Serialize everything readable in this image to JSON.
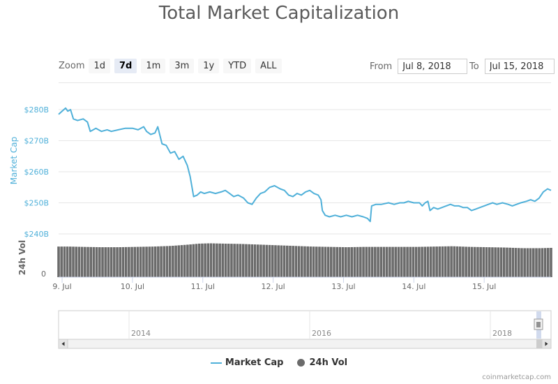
{
  "title": "Total Market Capitalization",
  "zoom": {
    "label": "Zoom",
    "buttons": [
      "1d",
      "7d",
      "1m",
      "3m",
      "1y",
      "YTD",
      "ALL"
    ],
    "active": "7d"
  },
  "range": {
    "from_label": "From",
    "from_value": "Jul 8, 2018",
    "to_label": "To",
    "to_value": "Jul 15, 2018"
  },
  "colors": {
    "market_cap": "#4fb0d9",
    "volume": "#6b6b6b"
  },
  "chart_data": {
    "type": "line",
    "x_tick_labels": [
      "9. Jul",
      "10. Jul",
      "11. Jul",
      "12. Jul",
      "13. Jul",
      "14. Jul",
      "15. Jul"
    ],
    "y_axis_label": "Market Cap",
    "y_tick_labels": [
      "$240B",
      "$250B",
      "$260B",
      "$270B",
      "$280B"
    ],
    "ylim": [
      240,
      280
    ],
    "volume_axis_label": "24h Vol",
    "volume_tick_labels": [
      "0"
    ],
    "series": [
      {
        "name": "Market Cap",
        "unit": "$B",
        "points": [
          [
            8.95,
            278.5
          ],
          [
            9.0,
            279.5
          ],
          [
            9.05,
            280.5
          ],
          [
            9.08,
            279.5
          ],
          [
            9.12,
            280.0
          ],
          [
            9.16,
            277.0
          ],
          [
            9.22,
            276.5
          ],
          [
            9.3,
            277.0
          ],
          [
            9.36,
            276.0
          ],
          [
            9.4,
            273.0
          ],
          [
            9.48,
            274.0
          ],
          [
            9.56,
            273.0
          ],
          [
            9.64,
            273.5
          ],
          [
            9.7,
            273.0
          ],
          [
            9.8,
            273.5
          ],
          [
            9.9,
            274.0
          ],
          [
            10.0,
            274.0
          ],
          [
            10.08,
            273.5
          ],
          [
            10.16,
            274.5
          ],
          [
            10.2,
            273.0
          ],
          [
            10.26,
            272.0
          ],
          [
            10.32,
            272.5
          ],
          [
            10.36,
            274.5
          ],
          [
            10.42,
            269.0
          ],
          [
            10.48,
            268.5
          ],
          [
            10.54,
            266.0
          ],
          [
            10.6,
            266.5
          ],
          [
            10.66,
            264.0
          ],
          [
            10.72,
            265.0
          ],
          [
            10.78,
            262.0
          ],
          [
            10.82,
            258.5
          ],
          [
            10.87,
            252.0
          ],
          [
            10.92,
            252.5
          ],
          [
            10.97,
            253.5
          ],
          [
            11.02,
            253.0
          ],
          [
            11.1,
            253.5
          ],
          [
            11.18,
            253.0
          ],
          [
            11.26,
            253.5
          ],
          [
            11.32,
            254.0
          ],
          [
            11.38,
            253.0
          ],
          [
            11.44,
            252.0
          ],
          [
            11.5,
            252.5
          ],
          [
            11.58,
            251.5
          ],
          [
            11.64,
            250.0
          ],
          [
            11.7,
            249.5
          ],
          [
            11.76,
            251.5
          ],
          [
            11.82,
            253.0
          ],
          [
            11.88,
            253.5
          ],
          [
            11.95,
            255.0
          ],
          [
            12.02,
            255.5
          ],
          [
            12.1,
            254.5
          ],
          [
            12.16,
            254.0
          ],
          [
            12.22,
            252.5
          ],
          [
            12.28,
            252.0
          ],
          [
            12.34,
            253.0
          ],
          [
            12.4,
            252.5
          ],
          [
            12.46,
            253.5
          ],
          [
            12.52,
            254.0
          ],
          [
            12.58,
            253.0
          ],
          [
            12.64,
            252.5
          ],
          [
            12.68,
            251.0
          ],
          [
            12.7,
            247.5
          ],
          [
            12.74,
            246.0
          ],
          [
            12.8,
            245.5
          ],
          [
            12.88,
            246.0
          ],
          [
            12.96,
            245.5
          ],
          [
            13.04,
            246.0
          ],
          [
            13.12,
            245.5
          ],
          [
            13.2,
            246.0
          ],
          [
            13.28,
            245.5
          ],
          [
            13.34,
            245.0
          ],
          [
            13.38,
            244.0
          ],
          [
            13.4,
            249.0
          ],
          [
            13.46,
            249.5
          ],
          [
            13.54,
            249.5
          ],
          [
            13.64,
            250.0
          ],
          [
            13.72,
            249.5
          ],
          [
            13.8,
            250.0
          ],
          [
            13.86,
            250.0
          ],
          [
            13.92,
            250.5
          ],
          [
            14.0,
            250.0
          ],
          [
            14.08,
            250.0
          ],
          [
            14.12,
            249.0
          ],
          [
            14.16,
            250.0
          ],
          [
            14.2,
            250.5
          ],
          [
            14.23,
            247.5
          ],
          [
            14.28,
            248.5
          ],
          [
            14.34,
            248.0
          ],
          [
            14.4,
            248.5
          ],
          [
            14.46,
            249.0
          ],
          [
            14.52,
            249.5
          ],
          [
            14.58,
            249.0
          ],
          [
            14.64,
            249.0
          ],
          [
            14.7,
            248.5
          ],
          [
            14.76,
            248.5
          ],
          [
            14.82,
            247.5
          ],
          [
            14.88,
            248.0
          ],
          [
            14.94,
            248.5
          ],
          [
            15.0,
            249.0
          ],
          [
            15.06,
            249.5
          ],
          [
            15.12,
            250.0
          ],
          [
            15.18,
            249.5
          ],
          [
            15.26,
            250.0
          ],
          [
            15.34,
            249.5
          ],
          [
            15.4,
            249.0
          ],
          [
            15.46,
            249.5
          ],
          [
            15.52,
            250.0
          ],
          [
            15.6,
            250.5
          ],
          [
            15.66,
            251.0
          ],
          [
            15.72,
            250.5
          ],
          [
            15.78,
            251.5
          ],
          [
            15.84,
            253.5
          ],
          [
            15.9,
            254.5
          ],
          [
            15.95,
            254.0
          ]
        ]
      },
      {
        "name": "24h Vol",
        "unit": "relative",
        "x": [
          8.95,
          9.1,
          9.3,
          9.55,
          9.8,
          10.05,
          10.3,
          10.55,
          10.8,
          10.95,
          11.1,
          11.3,
          11.55,
          11.8,
          12.05,
          12.3,
          12.55,
          12.8,
          13.05,
          13.3,
          13.55,
          13.8,
          14.05,
          14.3,
          14.55,
          14.8,
          15.05,
          15.3,
          15.55,
          15.8,
          15.95
        ],
        "values": [
          0.94,
          0.94,
          0.93,
          0.92,
          0.92,
          0.93,
          0.94,
          0.96,
          1.0,
          1.03,
          1.04,
          1.03,
          1.02,
          1.0,
          0.98,
          0.96,
          0.94,
          0.93,
          0.92,
          0.93,
          0.93,
          0.93,
          0.93,
          0.94,
          0.95,
          0.93,
          0.92,
          0.91,
          0.89,
          0.89,
          0.9
        ]
      }
    ]
  },
  "navigator": {
    "year_labels": [
      "2014",
      "2016",
      "2018"
    ]
  },
  "legend": {
    "items": [
      "Market Cap",
      "24h Vol"
    ]
  },
  "credits": "coinmarketcap.com"
}
